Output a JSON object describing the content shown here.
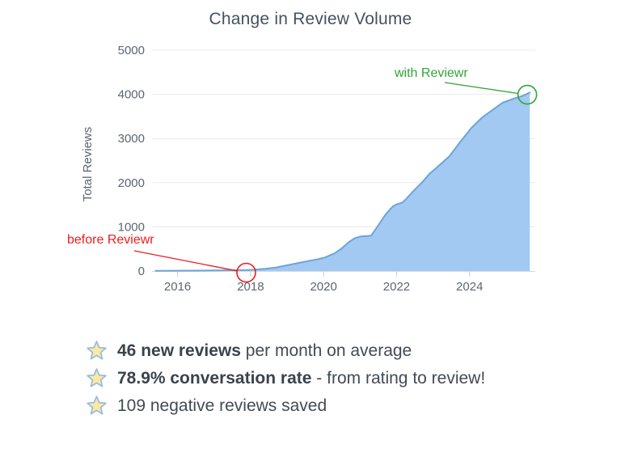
{
  "chart_data": {
    "type": "area",
    "title": "Change in Review Volume",
    "ylabel": "Total Reviews",
    "xlabel": "",
    "xlim": [
      2015.3,
      2025.8
    ],
    "ylim": [
      0,
      5000
    ],
    "xticks": [
      2016,
      2018,
      2020,
      2022,
      2024
    ],
    "yticks": [
      0,
      1000,
      2000,
      3000,
      4000,
      5000
    ],
    "grid": "horizontal",
    "legend": "none",
    "area_fill": "#a2c9f1",
    "line_color": "#6ba4dc",
    "series": [
      {
        "name": "Total Reviews",
        "points": [
          [
            2015.4,
            5
          ],
          [
            2016,
            8
          ],
          [
            2016.5,
            10
          ],
          [
            2017,
            14
          ],
          [
            2017.5,
            18
          ],
          [
            2017.9,
            22
          ],
          [
            2018.1,
            30
          ],
          [
            2018.4,
            50
          ],
          [
            2018.7,
            80
          ],
          [
            2019,
            130
          ],
          [
            2019.5,
            215
          ],
          [
            2019.8,
            260
          ],
          [
            2020.05,
            310
          ],
          [
            2020.3,
            400
          ],
          [
            2020.5,
            515
          ],
          [
            2020.7,
            660
          ],
          [
            2020.85,
            740
          ],
          [
            2021,
            780
          ],
          [
            2021.15,
            790
          ],
          [
            2021.3,
            800
          ],
          [
            2021.45,
            975
          ],
          [
            2021.7,
            1280
          ],
          [
            2021.9,
            1465
          ],
          [
            2022,
            1510
          ],
          [
            2022.15,
            1545
          ],
          [
            2022.25,
            1620
          ],
          [
            2022.45,
            1800
          ],
          [
            2022.7,
            2010
          ],
          [
            2022.9,
            2200
          ],
          [
            2023.15,
            2380
          ],
          [
            2023.45,
            2600
          ],
          [
            2023.75,
            2930
          ],
          [
            2024.05,
            3240
          ],
          [
            2024.35,
            3480
          ],
          [
            2024.65,
            3660
          ],
          [
            2024.9,
            3810
          ],
          [
            2025.2,
            3900
          ],
          [
            2025.45,
            3965
          ],
          [
            2025.65,
            4040
          ]
        ]
      }
    ]
  },
  "annotations": {
    "before": {
      "label": "before Reviewr",
      "color": "#ee1c1c",
      "anchor_year": 2017.88,
      "anchor_value": 0
    },
    "with": {
      "label": "with Reviewr",
      "color": "#31a637",
      "anchor_year": 2025.58,
      "anchor_value": 3990
    }
  },
  "bullets": [
    {
      "bold": "46 new reviews",
      "rest": " per month on average"
    },
    {
      "bold": "78.9% conversation rate",
      "rest": " - from rating to review!"
    },
    {
      "bold": "",
      "rest": "109 negative reviews saved"
    }
  ],
  "icons": {
    "star": {
      "fill": "#fbe9a4",
      "stroke": "#96bcdf"
    }
  }
}
